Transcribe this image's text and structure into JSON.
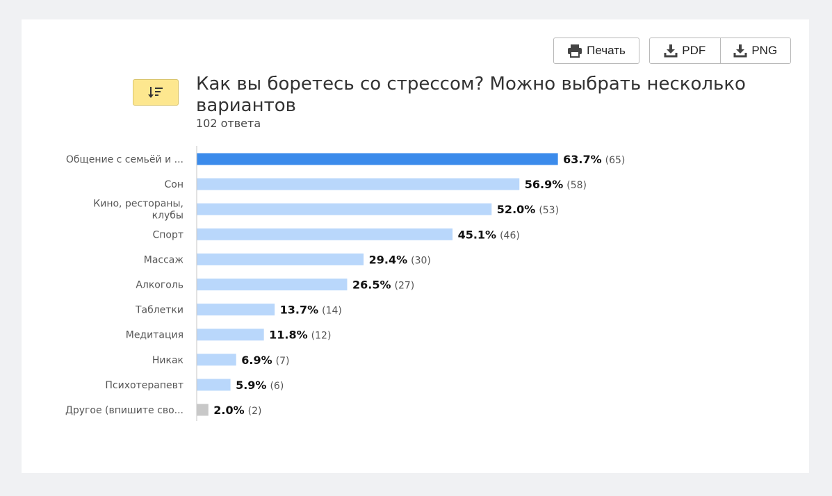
{
  "toolbar": {
    "print_label": "Печать",
    "pdf_label": "PDF",
    "png_label": "PNG"
  },
  "icons": {
    "print": "printer-icon",
    "download": "download-icon",
    "sort": "sort-descending-icon"
  },
  "colors": {
    "highlight_bar": "#3b8beb",
    "bar": "#b9d7fb",
    "other_bar": "#c8c8c8",
    "sort_button": "#fde78f"
  },
  "chart_data": {
    "type": "bar",
    "orientation": "horizontal",
    "title": "Как вы боретесь со стрессом? Можно выбрать несколько вариантов",
    "subtitle": "102 ответа",
    "categories": [
      [
        "Общение с семьёй и ..."
      ],
      [
        "Сон"
      ],
      [
        "Кино, рестораны,",
        "клубы"
      ],
      [
        "Спорт"
      ],
      [
        "Массаж"
      ],
      [
        "Алкоголь"
      ],
      [
        "Таблетки"
      ],
      [
        "Медитация"
      ],
      [
        "Никак"
      ],
      [
        "Психотерапевт"
      ],
      [
        "Другое (впишите сво..."
      ]
    ],
    "percent_labels": [
      "63.7%",
      "56.9%",
      "52.0%",
      "45.1%",
      "29.4%",
      "26.5%",
      "13.7%",
      "11.8%",
      "6.9%",
      "5.9%",
      "2.0%"
    ],
    "count_labels": [
      "(65)",
      "(58)",
      "(53)",
      "(46)",
      "(30)",
      "(27)",
      "(14)",
      "(12)",
      "(7)",
      "(6)",
      "(2)"
    ],
    "values": [
      63.7,
      56.9,
      52.0,
      45.1,
      29.4,
      26.5,
      13.7,
      11.8,
      6.9,
      5.9,
      2.0
    ],
    "counts": [
      65,
      58,
      53,
      46,
      30,
      27,
      14,
      12,
      7,
      6,
      2
    ],
    "highlight_index": 0,
    "other_index": 10,
    "xlim": [
      0,
      100
    ],
    "grid": false
  }
}
